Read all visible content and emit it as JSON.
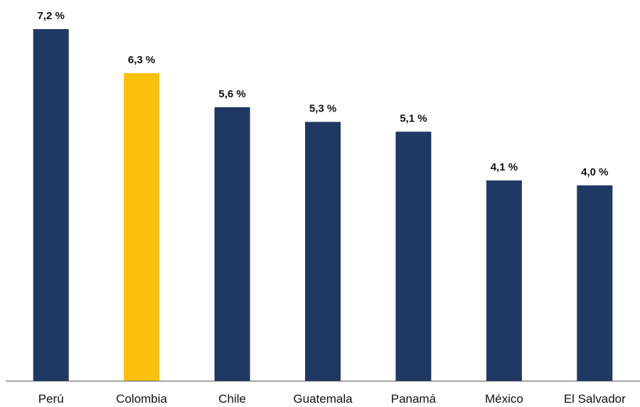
{
  "chart_data": {
    "type": "bar",
    "categories": [
      "Perú",
      "Colombia",
      "Chile",
      "Guatemala",
      "Panamá",
      "México",
      "El Salvador"
    ],
    "values": [
      7.2,
      6.3,
      5.6,
      5.3,
      5.1,
      4.1,
      4.0
    ],
    "value_labels": [
      "7,2 %",
      "6,3 %",
      "5,6 %",
      "5,3 %",
      "5,1 %",
      "4,1 %",
      "4,0 %"
    ],
    "highlight_category": "Colombia",
    "ylim": [
      0,
      7.2
    ],
    "grid": false,
    "legend": "none"
  },
  "colors": {
    "bar": "#1f3864",
    "highlight": "#fbbf0e",
    "axis": "#555555"
  }
}
